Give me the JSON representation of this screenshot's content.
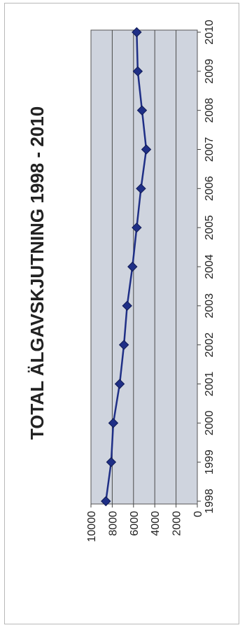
{
  "chart_data": {
    "type": "line",
    "title": "TOTAL ÄLGAVSKJUTNING 1998 - 2010",
    "xlabel": "",
    "ylabel": "",
    "categories": [
      "1998",
      "1999",
      "2000",
      "2001",
      "2002",
      "2003",
      "2004",
      "2005",
      "2006",
      "2007",
      "2008",
      "2009",
      "2010"
    ],
    "series": [
      {
        "values": [
          8600,
          8100,
          7900,
          7300,
          6900,
          6600,
          6100,
          5700,
          5300,
          4800,
          5200,
          5600,
          5700
        ]
      }
    ],
    "ylim": [
      0,
      10000
    ],
    "yticks": [
      "10000",
      "8000",
      "6000",
      "4000",
      "2000",
      "0"
    ],
    "grid": true,
    "colors": {
      "line": "#1f2f86",
      "marker": "#1f2f86",
      "plot_bg": "#cfd4de",
      "grid": "#4a4a4a"
    }
  }
}
